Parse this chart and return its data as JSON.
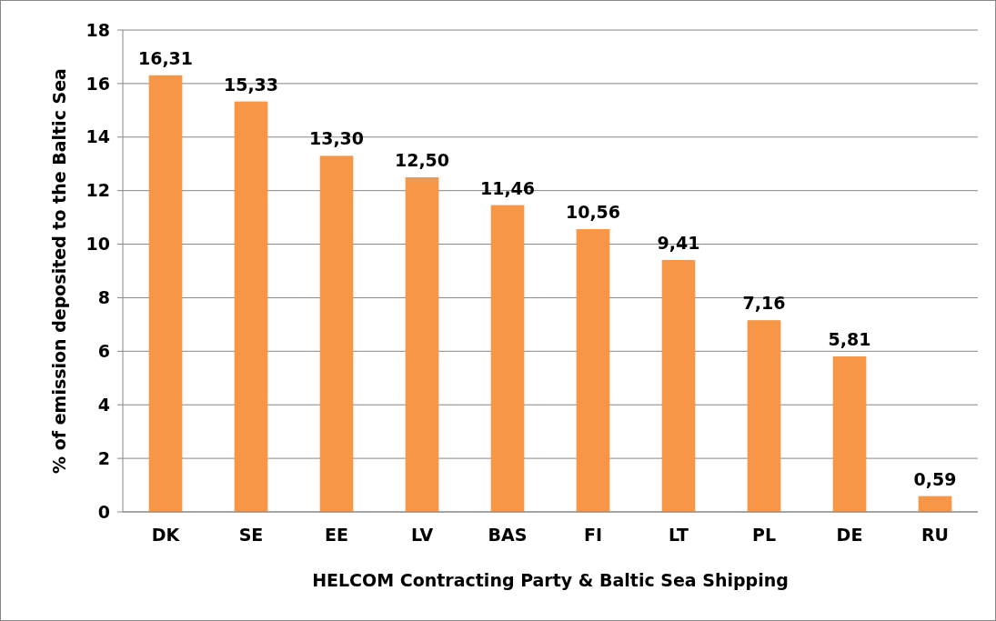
{
  "chart_data": {
    "type": "bar",
    "xlabel": "HELCOM Contracting Party & Baltic Sea Shipping",
    "ylabel": "% of emission deposited to the Baltic Sea",
    "categories": [
      "DK",
      "SE",
      "EE",
      "LV",
      "BAS",
      "FI",
      "LT",
      "PL",
      "DE",
      "RU"
    ],
    "values": [
      16.31,
      15.33,
      13.3,
      12.5,
      11.46,
      10.56,
      9.41,
      7.16,
      5.81,
      0.59
    ],
    "value_labels": [
      "16,31",
      "15,33",
      "13,30",
      "12,50",
      "11,46",
      "10,56",
      "9,41",
      "7,16",
      "5,81",
      "0,59"
    ],
    "color": "#f79646",
    "ylim": [
      0,
      18
    ],
    "yticks": [
      0,
      2,
      4,
      6,
      8,
      10,
      12,
      14,
      16,
      18
    ],
    "grid": "y"
  }
}
